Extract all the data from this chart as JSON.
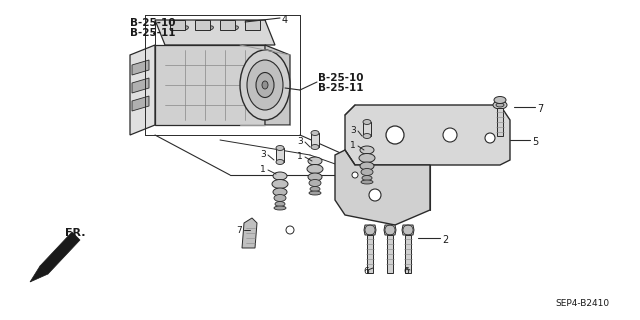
{
  "background_color": "#ffffff",
  "line_color": "#2a2a2a",
  "text_color": "#1a1a1a",
  "diagram_code": "SEP4-B2410",
  "fig_width": 6.4,
  "fig_height": 3.2,
  "dpi": 100,
  "labels": {
    "ref_top_left": [
      "B-25-10",
      "B-25-11"
    ],
    "ref_mid_right": [
      "B-25-10",
      "B-25-11"
    ],
    "direction": "FR.",
    "parts": {
      "1": "1",
      "2": "2",
      "3": "3",
      "4": "4",
      "5": "5",
      "6": "6",
      "7": "7"
    }
  }
}
